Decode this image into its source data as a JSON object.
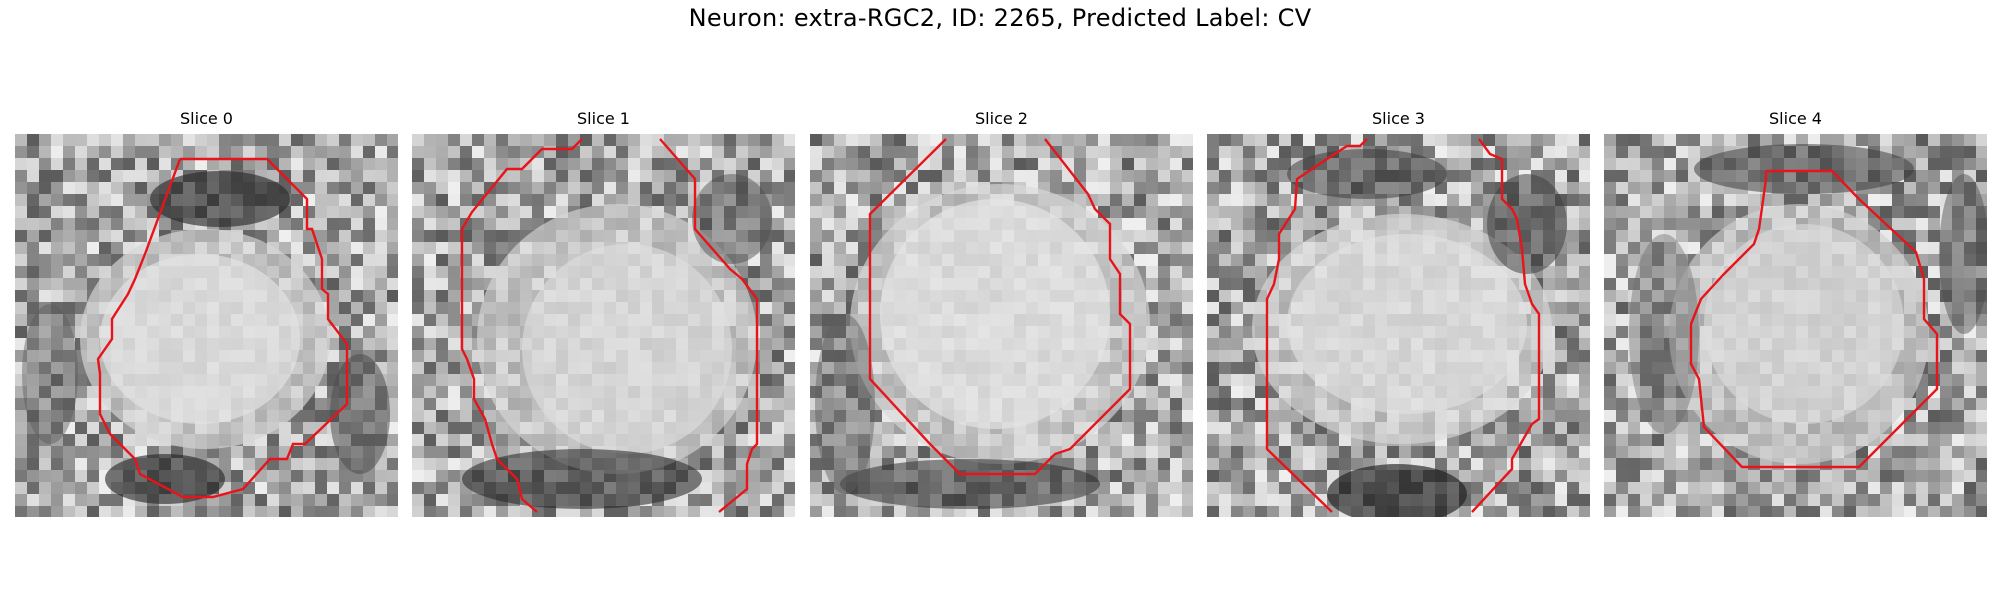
{
  "figure": {
    "title": "Neuron: extra-RGC2, ID: 2265, Predicted Label: CV"
  },
  "panels": [
    {
      "title": "Slice 0"
    },
    {
      "title": "Slice 1"
    },
    {
      "title": "Slice 2"
    },
    {
      "title": "Slice 3"
    },
    {
      "title": "Slice 4"
    }
  ],
  "colors": {
    "contour": "#e8141a",
    "background": "#ffffff"
  }
}
